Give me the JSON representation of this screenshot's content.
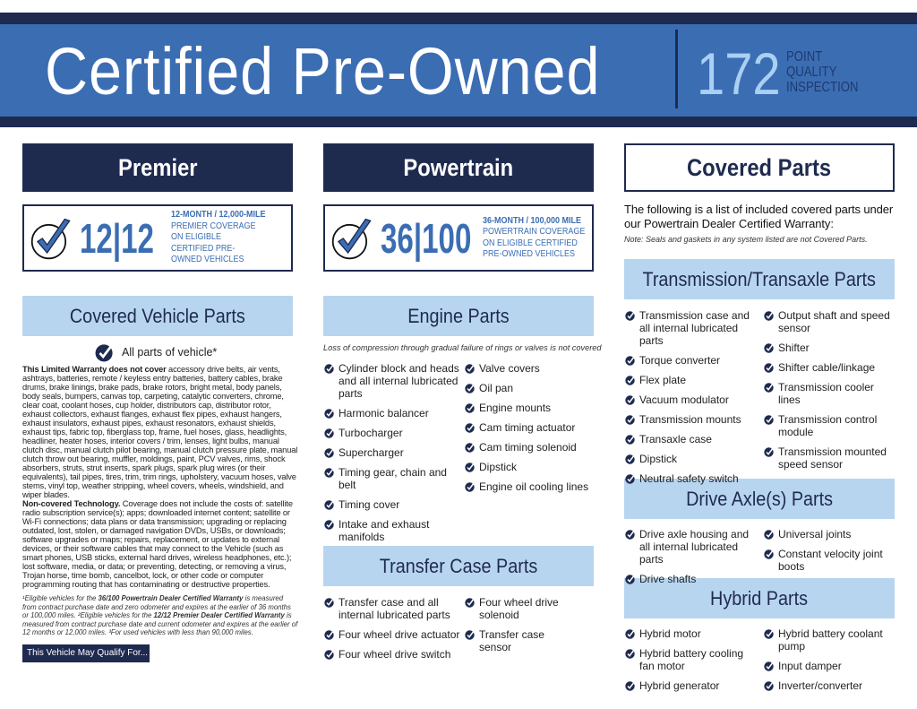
{
  "header": {
    "title": "Certified Pre-Owned",
    "points": "172",
    "points_label": "POINT\nQUALITY\nINSPECTION"
  },
  "colors": {
    "navy": "#1f2a4f",
    "blue": "#3b6db3",
    "light_blue": "#b8d5f0"
  },
  "premier": {
    "heading": "Premier",
    "badge_num": "12|12",
    "badge_l1": "12-MONTH / 12,000-MILE",
    "badge_rest": "PREMIER COVERAGE ON ELIGIBLE CERTIFIED PRE-OWNED VEHICLES"
  },
  "powertrain": {
    "heading": "Powertrain",
    "badge_num": "36|100",
    "badge_l1": "36-MONTH / 100,000 MILE",
    "badge_rest": "POWERTRAIN COVERAGE ON ELIGIBLE CERTIFIED PRE-OWNED VEHICLES"
  },
  "covered": {
    "heading": "Covered Parts",
    "intro": "The following is a list of included covered parts under our Powertrain Dealer Certified Warranty:",
    "note": "Note: Seals and gaskets in any system listed are not Covered Parts."
  },
  "vehicle_parts": {
    "heading": "Covered Vehicle Parts",
    "all_parts": "All parts of vehicle*",
    "not_cover_label": "This Limited Warranty does not cover",
    "not_cover_text": " accessory drive belts, air vents, ashtrays, batteries, remote / keyless entry batteries, battery cables, brake drums, brake linings, brake pads, brake rotors, bright metal, body panels, body seals, bumpers, canvas top, carpeting, catalytic converters, chrome, clear coat, coolant hoses, cup holder, distributors cap, distributor rotor, exhaust collectors, exhaust flanges, exhaust flex pipes, exhaust hangers, exhaust insulators, exhaust pipes, exhaust resonators, exhaust shields, exhaust tips, fabric top, fiberglass top, frame, fuel hoses, glass, headlights, headliner, heater hoses, interior covers / trim, lenses, light bulbs, manual clutch disc, manual clutch pilot bearing, manual clutch pressure plate, manual clutch throw out bearing, muffler, moldings, paint, PCV valves, rims, shock absorbers, struts, strut inserts, spark plugs, spark plug wires (or their equivalents), tail pipes, tires, trim, trim rings, upholstery, vacuum hoses, valve stems, vinyl top, weather stripping, wheel covers, wheels, windshield, and wiper blades.",
    "tech_label": "Non-covered Technology.",
    "tech_text": " Coverage does not include the costs of: satellite radio subscription service(s); apps; downloaded internet content; satellite or Wi-Fi connections; data plans or data transmission; upgrading or replacing outdated, lost, stolen, or damaged navigation DVDs, USBs, or downloads; software upgrades or maps; repairs, replacement, or updates to external devices, or their software cables that may connect to the Vehicle (such as smart phones, USB sticks, external hard drives, wireless headphones, etc.); lost software, media, or data; or preventing, detecting, or removing a virus, Trojan horse, time bomb, cancelbot, lock, or other code or computer programming routing that has contaminating or destructive properties.",
    "foot1": "¹Eligible vehicles for the ",
    "foot1b": "36/100 Powertrain Dealer Certified Warranty",
    "foot2": " is measured from contract purchase date and zero odometer and expires at the earlier of 36 months or 100,000 miles. ²Eligible vehicles for the ",
    "foot2b": "12/12 Premier Dealer Certified Warranty",
    "foot3": " is measured from contract purchase date and current odometer and expires at the earlier of 12 months or 12,000 miles. ³For used vehicles with less than 90,000 miles.",
    "qualify_button": "This Vehicle May Qualify For..."
  },
  "engine": {
    "heading": "Engine Parts",
    "note": "Loss of compression through gradual failure of rings or valves is not covered",
    "left": [
      "Cylinder block and heads and all internal lubricated parts",
      "Harmonic balancer",
      "Turbocharger",
      "Supercharger",
      "Timing gear, chain and belt",
      "Timing cover",
      "Intake and exhaust manifolds"
    ],
    "right": [
      "Valve covers",
      "Oil pan",
      "Engine mounts",
      "Cam timing actuator",
      "Cam timing solenoid",
      "Dipstick",
      "Engine oil cooling lines"
    ]
  },
  "transfer": {
    "heading": "Transfer Case Parts",
    "left": [
      "Transfer case and all internal lubricated parts",
      "Four wheel drive actuator",
      "Four wheel drive switch"
    ],
    "right": [
      "Four wheel drive solenoid",
      "Transfer case sensor"
    ]
  },
  "transmission": {
    "heading": "Transmission/Transaxle Parts",
    "left": [
      "Transmission case and all internal lubricated parts",
      "Torque converter",
      "Flex plate",
      "Vacuum modulator",
      "Transmission mounts",
      "Transaxle case",
      "Dipstick",
      "Neutral safety switch"
    ],
    "right": [
      "Output shaft and speed sensor",
      "Shifter",
      "Shifter cable/linkage",
      "Transmission cooler lines",
      "Transmission control module",
      "Transmission mounted speed sensor"
    ]
  },
  "axle": {
    "heading": "Drive Axle(s) Parts",
    "left": [
      "Drive axle housing and all internal lubricated parts",
      "Drive shafts"
    ],
    "right": [
      "Universal joints",
      "Constant velocity joint boots"
    ]
  },
  "hybrid": {
    "heading": "Hybrid Parts",
    "left": [
      "Hybrid motor",
      "Hybrid battery cooling fan motor",
      "Hybrid generator"
    ],
    "right": [
      "Hybrid battery coolant pump",
      "Input damper",
      "Inverter/converter"
    ]
  }
}
